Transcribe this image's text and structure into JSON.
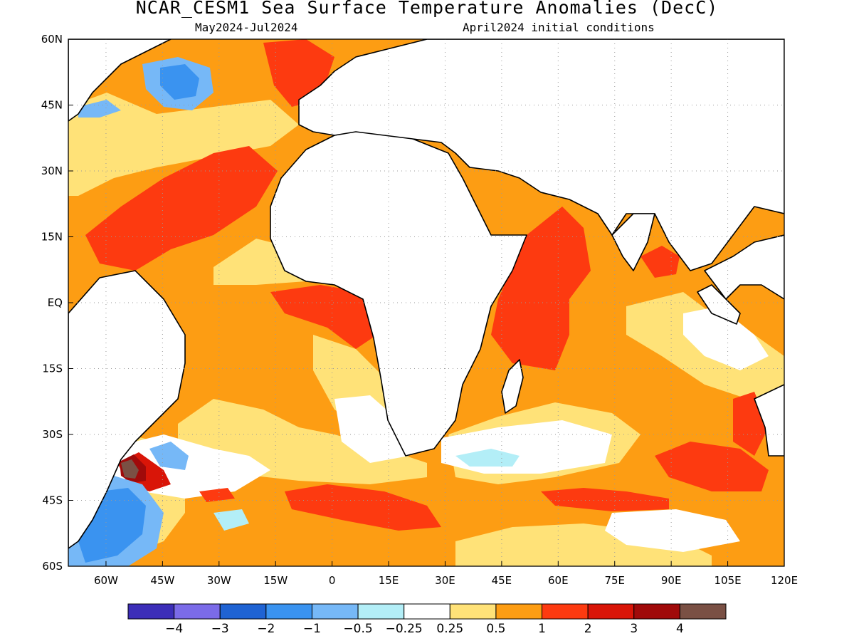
{
  "header": {
    "title": "NCAR_CESM1 Sea Surface Temperature Anomalies (DecC)",
    "period": "May2024-Jul2024",
    "init": "April2024 initial conditions"
  },
  "axes": {
    "lat_labels": [
      "60N",
      "45N",
      "30N",
      "15N",
      "EQ",
      "15S",
      "30S",
      "45S",
      "60S"
    ],
    "lon_labels": [
      "60W",
      "45W",
      "30W",
      "15W",
      "0",
      "15E",
      "30E",
      "45E",
      "60E",
      "75E",
      "90E",
      "105E",
      "120E"
    ]
  },
  "colorbar": {
    "colors": [
      "#3c2eb8",
      "#7b6be8",
      "#1f63d3",
      "#3a93f0",
      "#76b8f7",
      "#b3eef7",
      "#ffffff",
      "#ffe278",
      "#fd9d13",
      "#fd3a10",
      "#d91508",
      "#a00a0a",
      "#7a5044"
    ],
    "labels": [
      "-4",
      "-3",
      "-2",
      "-1",
      "-0.5",
      "-0.25",
      "0.25",
      "0.5",
      "1",
      "2",
      "3",
      "4"
    ]
  },
  "colors": {
    "land": "#ffffff",
    "coast": "#000000",
    "grid": "#9a9a9a",
    "anomaly_0_5_1": "#fd9d13",
    "anomaly_1_2": "#fd3a10",
    "anomaly_0_25_0_5": "#ffe278",
    "anomaly_neg": "#76b8f7"
  }
}
